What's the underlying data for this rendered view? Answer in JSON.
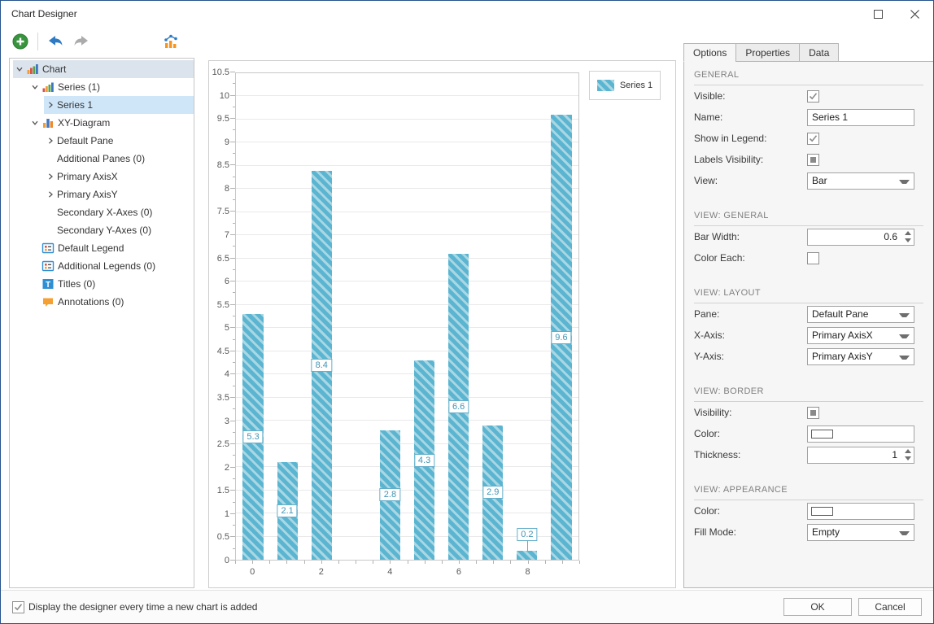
{
  "window": {
    "title": "Chart Designer"
  },
  "tree": {
    "items": [
      {
        "label": "Chart",
        "level": 0,
        "expander": "expanded",
        "icon": "chart",
        "selected": "muted"
      },
      {
        "label": "Series (1)",
        "level": 1,
        "expander": "expanded",
        "icon": "series",
        "selected": null
      },
      {
        "label": "Series 1",
        "level": 2,
        "expander": "collapsed",
        "icon": null,
        "selected": "highlight"
      },
      {
        "label": "XY-Diagram",
        "level": 1,
        "expander": "expanded",
        "icon": "diagram",
        "selected": null
      },
      {
        "label": "Default Pane",
        "level": 2,
        "expander": "collapsed",
        "icon": null,
        "selected": null
      },
      {
        "label": "Additional Panes (0)",
        "level": 2,
        "expander": null,
        "icon": null,
        "selected": null
      },
      {
        "label": "Primary AxisX",
        "level": 2,
        "expander": "collapsed",
        "icon": null,
        "selected": null
      },
      {
        "label": "Primary AxisY",
        "level": 2,
        "expander": "collapsed",
        "icon": null,
        "selected": null
      },
      {
        "label": "Secondary X-Axes (0)",
        "level": 2,
        "expander": null,
        "icon": null,
        "selected": null
      },
      {
        "label": "Secondary Y-Axes (0)",
        "level": 2,
        "expander": null,
        "icon": null,
        "selected": null
      },
      {
        "label": "Default Legend",
        "level": 1,
        "expander": null,
        "icon": "legend",
        "selected": null
      },
      {
        "label": "Additional Legends (0)",
        "level": 1,
        "expander": null,
        "icon": "legend",
        "selected": null
      },
      {
        "label": "Titles (0)",
        "level": 1,
        "expander": null,
        "icon": "title",
        "selected": null
      },
      {
        "label": "Annotations (0)",
        "level": 1,
        "expander": null,
        "icon": "annotation",
        "selected": null
      }
    ]
  },
  "chart_data": {
    "type": "bar",
    "series": [
      {
        "name": "Series 1",
        "points": [
          [
            0,
            5.3
          ],
          [
            1,
            2.1
          ],
          [
            2,
            8.4
          ],
          [
            4,
            2.8
          ],
          [
            5,
            4.3
          ],
          [
            6,
            6.6
          ],
          [
            7,
            2.9
          ],
          [
            8,
            0.2
          ],
          [
            9,
            9.6
          ]
        ]
      }
    ],
    "bar_width": 0.6,
    "xlim": [
      -0.5,
      9.5
    ],
    "ylim": [
      0,
      10.5
    ],
    "y_tick_step": 0.5,
    "y_minor_step": 0.25,
    "x_tick_step": 0.5,
    "x_major_ticks": [
      0,
      2,
      4,
      6,
      8
    ],
    "grid": "horizontal",
    "legend_position": "top-right",
    "data_labels": true,
    "callout_threshold": 0.5,
    "bar_color": "#5bb5d1",
    "bar_stripe_color": "#a9d7e4",
    "label_text_color": "#4295b5",
    "label_border_color": "#62aec9"
  },
  "panel": {
    "tabs": [
      {
        "label": "Options",
        "active": true
      },
      {
        "label": "Properties",
        "active": false
      },
      {
        "label": "Data",
        "active": false
      }
    ],
    "sections": [
      {
        "header": "GENERAL",
        "rows": [
          {
            "label": "Visible:",
            "control": "checkbox",
            "state": "checked"
          },
          {
            "label": "Name:",
            "control": "text",
            "value": "Series 1"
          },
          {
            "label": "Show in Legend:",
            "control": "checkbox",
            "state": "checked"
          },
          {
            "label": "Labels Visibility:",
            "control": "checkbox",
            "state": "indeterminate"
          },
          {
            "label": "View:",
            "control": "dropdown",
            "value": "Bar"
          }
        ]
      },
      {
        "header": "VIEW: GENERAL",
        "rows": [
          {
            "label": "Bar Width:",
            "control": "spinner",
            "value": "0.6"
          },
          {
            "label": "Color Each:",
            "control": "checkbox",
            "state": "unchecked"
          }
        ]
      },
      {
        "header": "VIEW: LAYOUT",
        "rows": [
          {
            "label": "Pane:",
            "control": "dropdown",
            "value": "Default Pane"
          },
          {
            "label": "X-Axis:",
            "control": "dropdown",
            "value": "Primary AxisX"
          },
          {
            "label": "Y-Axis:",
            "control": "dropdown",
            "value": "Primary AxisY"
          }
        ]
      },
      {
        "header": "VIEW: BORDER",
        "rows": [
          {
            "label": "Visibility:",
            "control": "checkbox",
            "state": "indeterminate"
          },
          {
            "label": "Color:",
            "control": "colorpicker",
            "value": ""
          },
          {
            "label": "Thickness:",
            "control": "spinner",
            "value": "1"
          }
        ]
      },
      {
        "header": "VIEW: APPEARANCE",
        "rows": [
          {
            "label": "Color:",
            "control": "colorpicker",
            "value": ""
          },
          {
            "label": "Fill Mode:",
            "control": "dropdown",
            "value": "Empty"
          }
        ]
      }
    ]
  },
  "footer": {
    "checkbox_label": "Display the designer every time a new chart is added",
    "checkbox_state": "checked",
    "ok_label": "OK",
    "cancel_label": "Cancel"
  },
  "colors": {
    "window_border": "#26538c",
    "tree_root_selection": "#dbe3ec",
    "tree_item_selection": "#cfe6f9",
    "bar_fill": "#5bb5d1",
    "bar_stripe": "#a9d7e4"
  }
}
